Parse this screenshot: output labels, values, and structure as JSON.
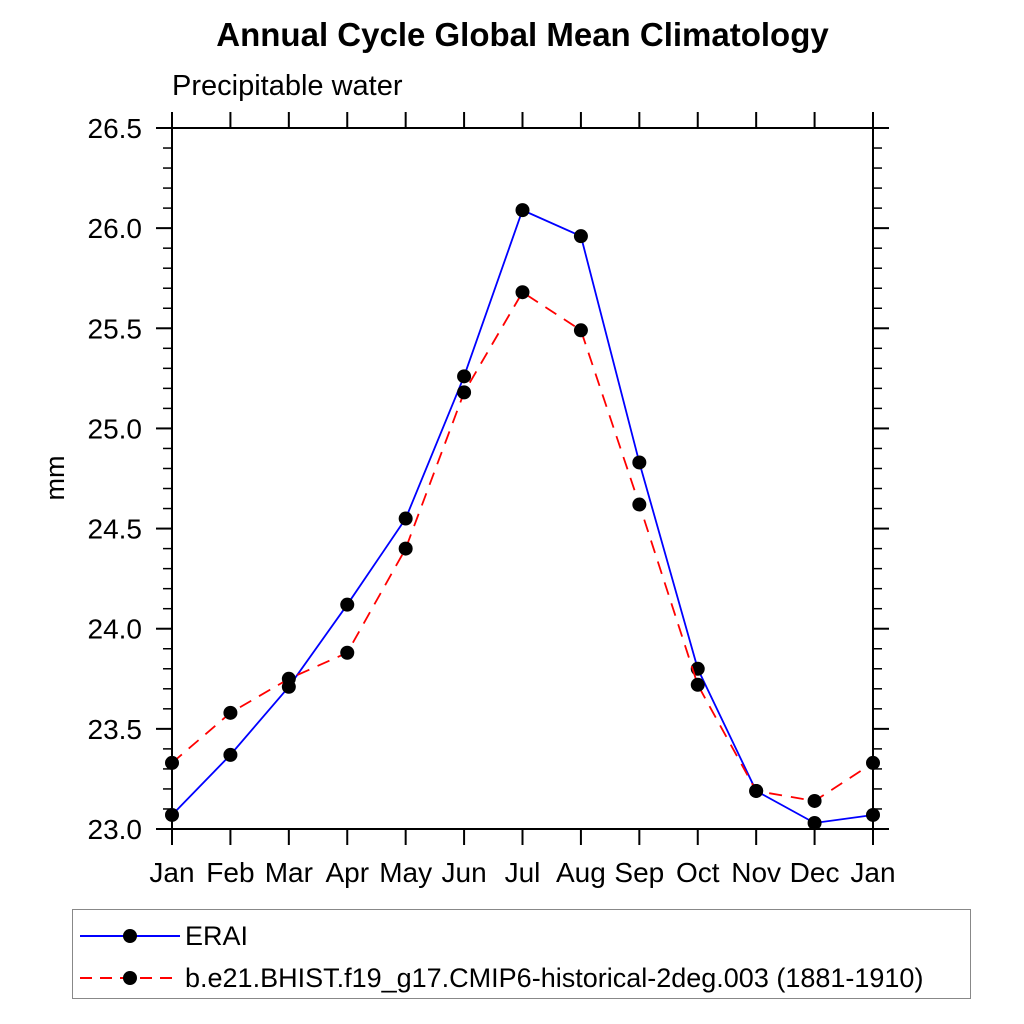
{
  "header": {
    "title": "Annual Cycle Global Mean Climatology",
    "subtitle": "Precipitable water"
  },
  "chart_data": {
    "type": "line",
    "title": "Annual Cycle Global Mean Climatology",
    "subtitle": "Precipitable water",
    "xlabel": "",
    "ylabel": "mm",
    "ylim": [
      23.0,
      26.5
    ],
    "ytick_step": 0.5,
    "yminor_step": 0.1,
    "grid": false,
    "legend_position": "bottom-left-box",
    "categories": [
      "Jan",
      "Feb",
      "Mar",
      "Apr",
      "May",
      "Jun",
      "Jul",
      "Aug",
      "Sep",
      "Oct",
      "Nov",
      "Dec",
      "Jan"
    ],
    "series": [
      {
        "name": "ERAI",
        "color": "#0000ff",
        "line_style": "solid",
        "marker": "filled-circle",
        "marker_color": "#000000",
        "values": [
          23.07,
          23.37,
          23.71,
          24.12,
          24.55,
          25.26,
          26.09,
          25.96,
          24.83,
          23.8,
          23.19,
          23.03,
          23.07
        ]
      },
      {
        "name": "b.e21.BHIST.f19_g17.CMIP6-historical-2deg.003 (1881-1910)",
        "color": "#ff0000",
        "line_style": "dashed",
        "marker": "filled-circle",
        "marker_color": "#000000",
        "values": [
          23.33,
          23.58,
          23.75,
          23.88,
          24.4,
          25.18,
          25.68,
          25.49,
          24.62,
          23.72,
          23.19,
          23.14,
          23.33
        ]
      }
    ]
  }
}
